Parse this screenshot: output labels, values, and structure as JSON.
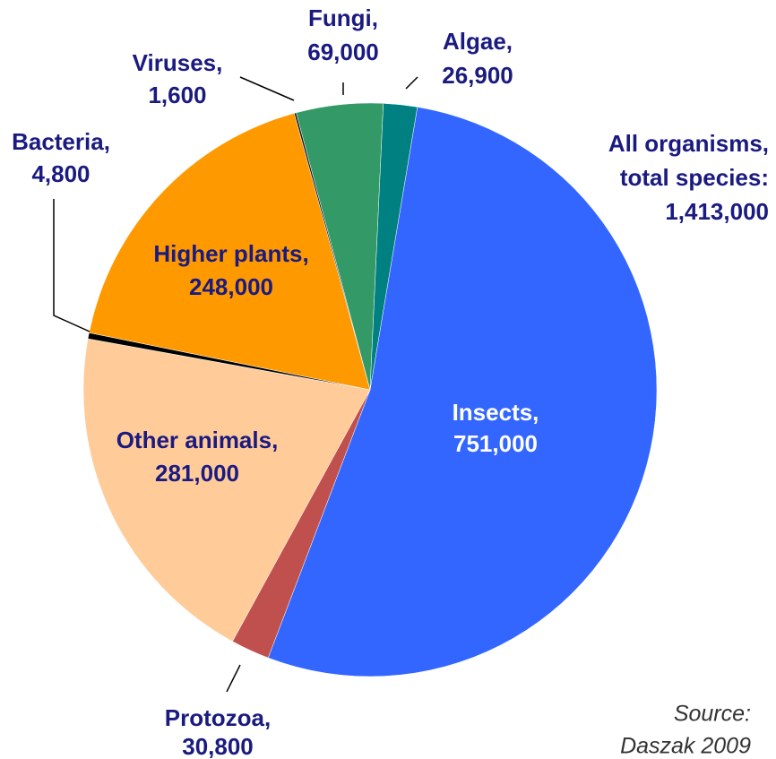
{
  "chart_data": {
    "type": "pie",
    "categories": [
      "Insects,",
      "Protozoa,",
      "Other animals,",
      "Bacteria,",
      "Higher plants,",
      "Viruses,",
      "Fungi,",
      "Algae,"
    ],
    "values": [
      751000,
      30800,
      281000,
      4800,
      248000,
      1600,
      69000,
      26900
    ],
    "value_labels": [
      "751,000",
      "30,800",
      "281,000",
      "4,800",
      "248,000",
      "1,600",
      "69,000",
      "26,900"
    ],
    "colors": [
      "#3366ff",
      "#c0504d",
      "#ffcc99",
      "#000000",
      "#ff9900",
      "#1a1a1a",
      "#339966",
      "#008080"
    ],
    "annotation": [
      "All organisms,",
      "total species:",
      "1,413,000"
    ],
    "source": [
      "Source:",
      "Daszak 2009"
    ]
  }
}
